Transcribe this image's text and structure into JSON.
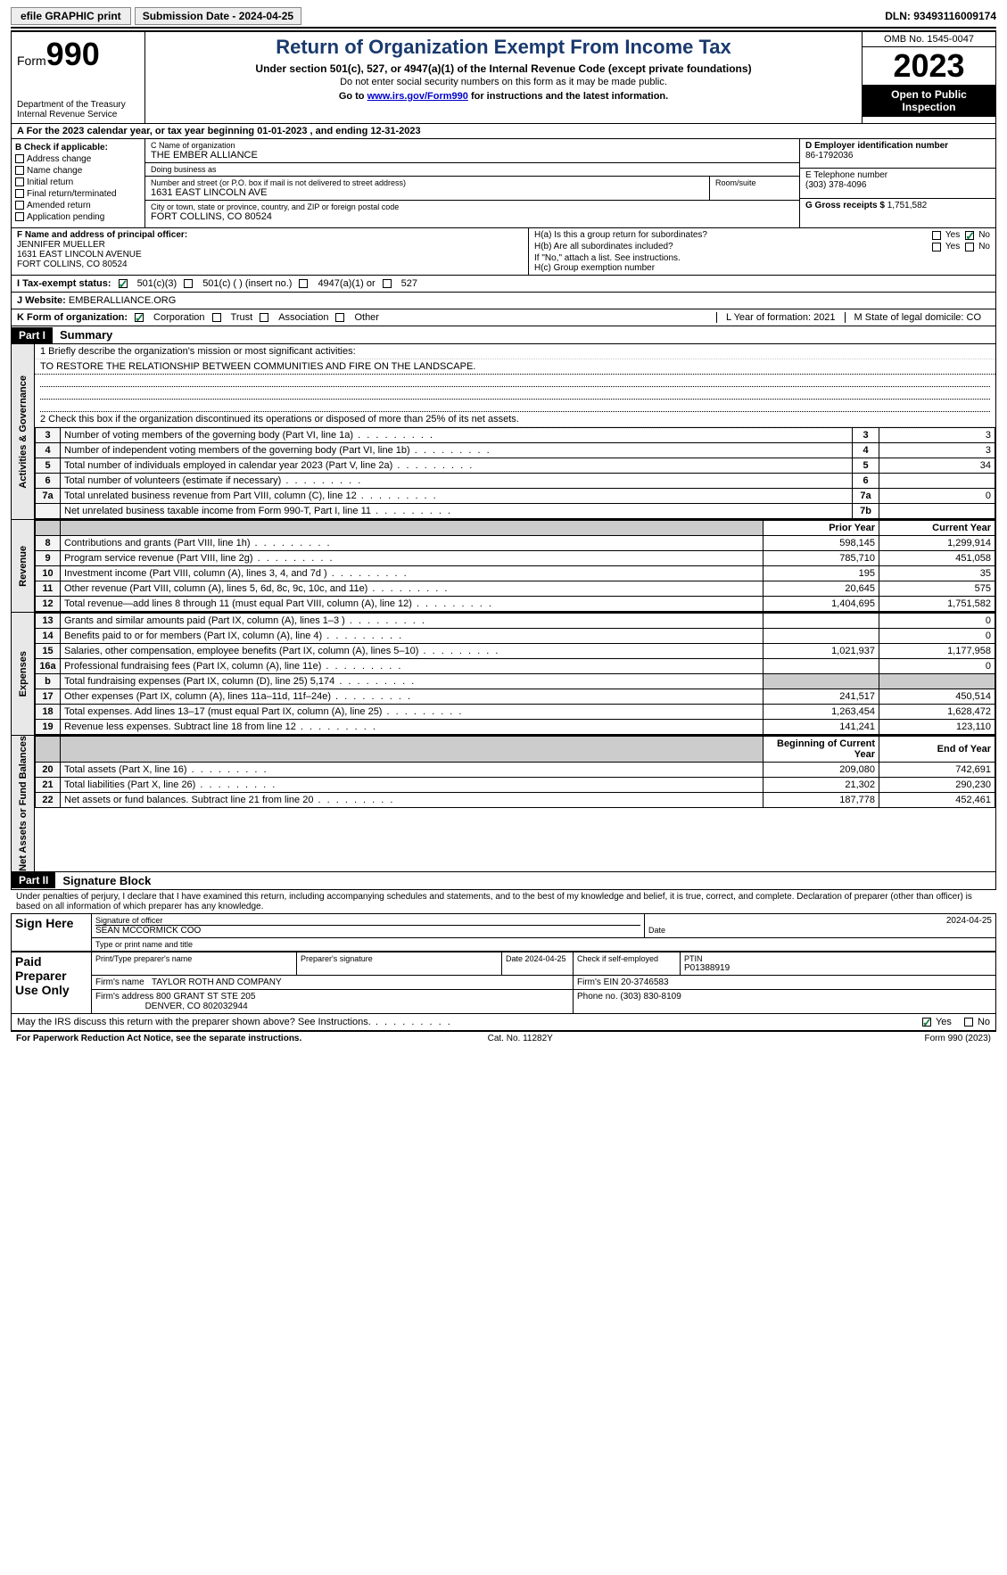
{
  "topbar": {
    "efile": "efile GRAPHIC print",
    "submission": "Submission Date - 2024-04-25",
    "dln": "DLN: 93493116009174"
  },
  "header": {
    "form_label": "Form",
    "form_no": "990",
    "dept": "Department of the Treasury\nInternal Revenue Service",
    "title": "Return of Organization Exempt From Income Tax",
    "sub": "Under section 501(c), 527, or 4947(a)(1) of the Internal Revenue Code (except private foundations)",
    "note": "Do not enter social security numbers on this form as it may be made public.",
    "goto_pre": "Go to ",
    "goto_link": "www.irs.gov/Form990",
    "goto_post": " for instructions and the latest information.",
    "omb": "OMB No. 1545-0047",
    "year": "2023",
    "open": "Open to Public Inspection"
  },
  "row_a": "A For the 2023 calendar year, or tax year beginning 01-01-2023    , and ending 12-31-2023",
  "col_b": {
    "head": "B Check if applicable:",
    "items": [
      "Address change",
      "Name change",
      "Initial return",
      "Final return/terminated",
      "Amended return",
      "Application pending"
    ]
  },
  "col_c": {
    "name_lbl": "C Name of organization",
    "name": "THE EMBER ALLIANCE",
    "dba_lbl": "Doing business as",
    "dba": "",
    "street_lbl": "Number and street (or P.O. box if mail is not delivered to street address)",
    "street": "1631 EAST LINCOLN AVE",
    "room_lbl": "Room/suite",
    "city_lbl": "City or town, state or province, country, and ZIP or foreign postal code",
    "city": "FORT COLLINS, CO  80524"
  },
  "col_d": {
    "lbl": "D Employer identification number",
    "val": "86-1792036"
  },
  "col_e": {
    "lbl": "E Telephone number",
    "val": "(303) 378-4096"
  },
  "col_g": {
    "lbl": "G Gross receipts $",
    "val": "1,751,582"
  },
  "col_f": {
    "lbl": "F  Name and address of principal officer:",
    "name": "JENNIFER MUELLER",
    "addr1": "1631 EAST LINCOLN AVENUE",
    "addr2": "FORT COLLINS, CO  80524"
  },
  "col_h": {
    "ha": "H(a)  Is this a group return for subordinates?",
    "hb": "H(b)  Are all subordinates included?",
    "hb_note": "If \"No,\" attach a list. See instructions.",
    "hc": "H(c)  Group exemption number"
  },
  "row_i": {
    "lbl": "I  Tax-exempt status:",
    "opts": [
      "501(c)(3)",
      "501(c) (  ) (insert no.)",
      "4947(a)(1) or",
      "527"
    ]
  },
  "row_j": {
    "lbl": "J  Website:",
    "val": "EMBERALLIANCE.ORG"
  },
  "row_k": {
    "lbl": "K Form of organization:",
    "opts": [
      "Corporation",
      "Trust",
      "Association",
      "Other"
    ],
    "l": "L Year of formation: 2021",
    "m": "M State of legal domicile: CO"
  },
  "part1": {
    "hdr": "Part I",
    "title": "Summary"
  },
  "gov": {
    "l1": "1  Briefly describe the organization's mission or most significant activities:",
    "mission": "TO RESTORE THE RELATIONSHIP BETWEEN COMMUNITIES AND FIRE ON THE LANDSCAPE.",
    "l2": "2  Check this box      if the organization discontinued its operations or disposed of more than 25% of its net assets.",
    "rows": [
      {
        "n": "3",
        "t": "Number of voting members of the governing body (Part VI, line 1a)",
        "rn": "3",
        "v": "3"
      },
      {
        "n": "4",
        "t": "Number of independent voting members of the governing body (Part VI, line 1b)",
        "rn": "4",
        "v": "3"
      },
      {
        "n": "5",
        "t": "Total number of individuals employed in calendar year 2023 (Part V, line 2a)",
        "rn": "5",
        "v": "34"
      },
      {
        "n": "6",
        "t": "Total number of volunteers (estimate if necessary)",
        "rn": "6",
        "v": ""
      },
      {
        "n": "7a",
        "t": "Total unrelated business revenue from Part VIII, column (C), line 12",
        "rn": "7a",
        "v": "0"
      },
      {
        "n": "",
        "t": "Net unrelated business taxable income from Form 990-T, Part I, line 11",
        "rn": "7b",
        "v": ""
      }
    ]
  },
  "rev": {
    "hdr_prior": "Prior Year",
    "hdr_cur": "Current Year",
    "rows": [
      {
        "n": "8",
        "t": "Contributions and grants (Part VIII, line 1h)",
        "p": "598,145",
        "c": "1,299,914"
      },
      {
        "n": "9",
        "t": "Program service revenue (Part VIII, line 2g)",
        "p": "785,710",
        "c": "451,058"
      },
      {
        "n": "10",
        "t": "Investment income (Part VIII, column (A), lines 3, 4, and 7d )",
        "p": "195",
        "c": "35"
      },
      {
        "n": "11",
        "t": "Other revenue (Part VIII, column (A), lines 5, 6d, 8c, 9c, 10c, and 11e)",
        "p": "20,645",
        "c": "575"
      },
      {
        "n": "12",
        "t": "Total revenue—add lines 8 through 11 (must equal Part VIII, column (A), line 12)",
        "p": "1,404,695",
        "c": "1,751,582"
      }
    ]
  },
  "exp": {
    "rows": [
      {
        "n": "13",
        "t": "Grants and similar amounts paid (Part IX, column (A), lines 1–3 )",
        "p": "",
        "c": "0"
      },
      {
        "n": "14",
        "t": "Benefits paid to or for members (Part IX, column (A), line 4)",
        "p": "",
        "c": "0"
      },
      {
        "n": "15",
        "t": "Salaries, other compensation, employee benefits (Part IX, column (A), lines 5–10)",
        "p": "1,021,937",
        "c": "1,177,958"
      },
      {
        "n": "16a",
        "t": "Professional fundraising fees (Part IX, column (A), line 11e)",
        "p": "",
        "c": "0"
      },
      {
        "n": "b",
        "t": "Total fundraising expenses (Part IX, column (D), line 25) 5,174",
        "p": "GREY",
        "c": "GREY"
      },
      {
        "n": "17",
        "t": "Other expenses (Part IX, column (A), lines 11a–11d, 11f–24e)",
        "p": "241,517",
        "c": "450,514"
      },
      {
        "n": "18",
        "t": "Total expenses. Add lines 13–17 (must equal Part IX, column (A), line 25)",
        "p": "1,263,454",
        "c": "1,628,472"
      },
      {
        "n": "19",
        "t": "Revenue less expenses. Subtract line 18 from line 12",
        "p": "141,241",
        "c": "123,110"
      }
    ]
  },
  "na": {
    "hdr_b": "Beginning of Current Year",
    "hdr_e": "End of Year",
    "rows": [
      {
        "n": "20",
        "t": "Total assets (Part X, line 16)",
        "p": "209,080",
        "c": "742,691"
      },
      {
        "n": "21",
        "t": "Total liabilities (Part X, line 26)",
        "p": "21,302",
        "c": "290,230"
      },
      {
        "n": "22",
        "t": "Net assets or fund balances. Subtract line 21 from line 20",
        "p": "187,778",
        "c": "452,461"
      }
    ]
  },
  "part2": {
    "hdr": "Part II",
    "title": "Signature Block"
  },
  "sig": {
    "decl": "Under penalties of perjury, I declare that I have examined this return, including accompanying schedules and statements, and to the best of my knowledge and belief, it is true, correct, and complete. Declaration of preparer (other than officer) is based on all information of which preparer has any knowledge.",
    "sign_here": "Sign Here",
    "sig_lbl": "Signature of officer",
    "sig_name": "SEAN MCCORMICK COO",
    "sig_type": "Type or print name and title",
    "date_lbl": "Date",
    "date": "2024-04-25",
    "paid": "Paid Preparer Use Only",
    "prep_name_lbl": "Print/Type preparer's name",
    "prep_sig_lbl": "Preparer's signature",
    "prep_date": "Date\n2024-04-25",
    "self_emp": "Check      if self-employed",
    "ptin_lbl": "PTIN",
    "ptin": "P01388919",
    "firm_name_lbl": "Firm's name",
    "firm_name": "TAYLOR ROTH AND COMPANY",
    "firm_ein_lbl": "Firm's EIN",
    "firm_ein": "20-3746583",
    "firm_addr_lbl": "Firm's address",
    "firm_addr1": "800 GRANT ST STE 205",
    "firm_addr2": "DENVER, CO  802032944",
    "phone_lbl": "Phone no.",
    "phone": "(303) 830-8109",
    "discuss": "May the IRS discuss this return with the preparer shown above? See Instructions."
  },
  "footer": {
    "left": "For Paperwork Reduction Act Notice, see the separate instructions.",
    "mid": "Cat. No. 11282Y",
    "right": "Form 990 (2023)"
  },
  "vtabs": {
    "gov": "Activities & Governance",
    "rev": "Revenue",
    "exp": "Expenses",
    "na": "Net Assets or Fund Balances"
  }
}
